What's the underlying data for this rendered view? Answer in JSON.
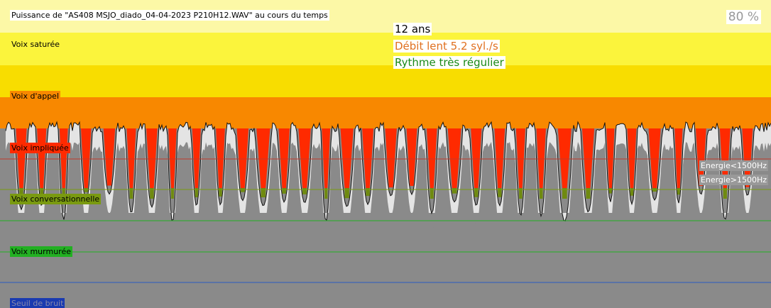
{
  "header": {
    "title": "Puissance de \"AS408 MSJO_diado_04-04-2023 P210H12.WAV\" au cours du temps",
    "percent": "80 %"
  },
  "summary": {
    "age": "12 ans",
    "rate": "Débit lent 5.2  syl./s",
    "rhythm": "Rythme très régulier"
  },
  "zones": [
    "Voix saturée",
    "Voix d'appel",
    "Voix impliquée",
    "Voix conversationnelle",
    "Voix murmurée",
    "Seuil de bruit"
  ],
  "legend": [
    "Energie<1500Hz",
    "Energie>1500Hz"
  ]
}
